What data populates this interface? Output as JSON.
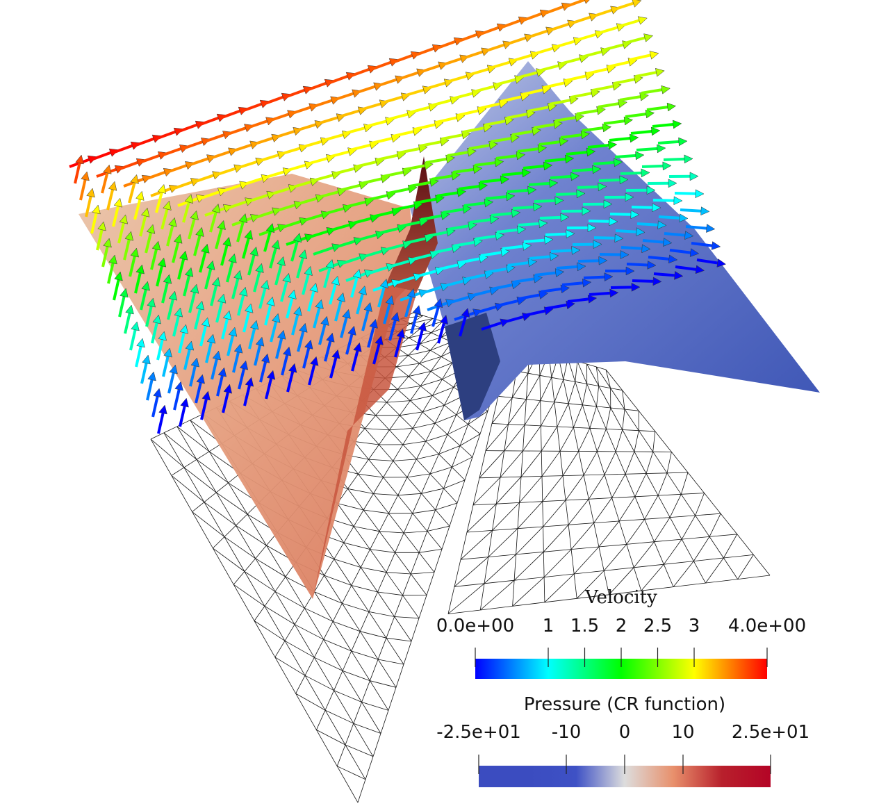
{
  "colorbars": [
    {
      "title": "Velocity",
      "range": [
        0,
        4
      ],
      "ticks": [
        {
          "value": 0,
          "label": "0.0e+00"
        },
        1,
        1.5,
        2,
        2.5,
        3,
        {
          "value": 4,
          "label": "4.0e+00"
        }
      ],
      "colors": [
        "#0000ff",
        "#00ffff",
        "#00ff00",
        "#ffff00",
        "#ff0000"
      ]
    },
    {
      "title": "Pressure (CR function)",
      "range": [
        -25,
        25
      ],
      "ticks": [
        {
          "value": -25,
          "label": "-2.5e+01"
        },
        -10,
        0,
        10,
        {
          "value": 25,
          "label": "2.5e+01"
        }
      ],
      "colors": [
        "#3b4cc0",
        "#3b4cc0",
        "#3e51c5",
        "#dddddd",
        "#e8906c",
        "#b8202c",
        "#b40426"
      ]
    }
  ]
}
